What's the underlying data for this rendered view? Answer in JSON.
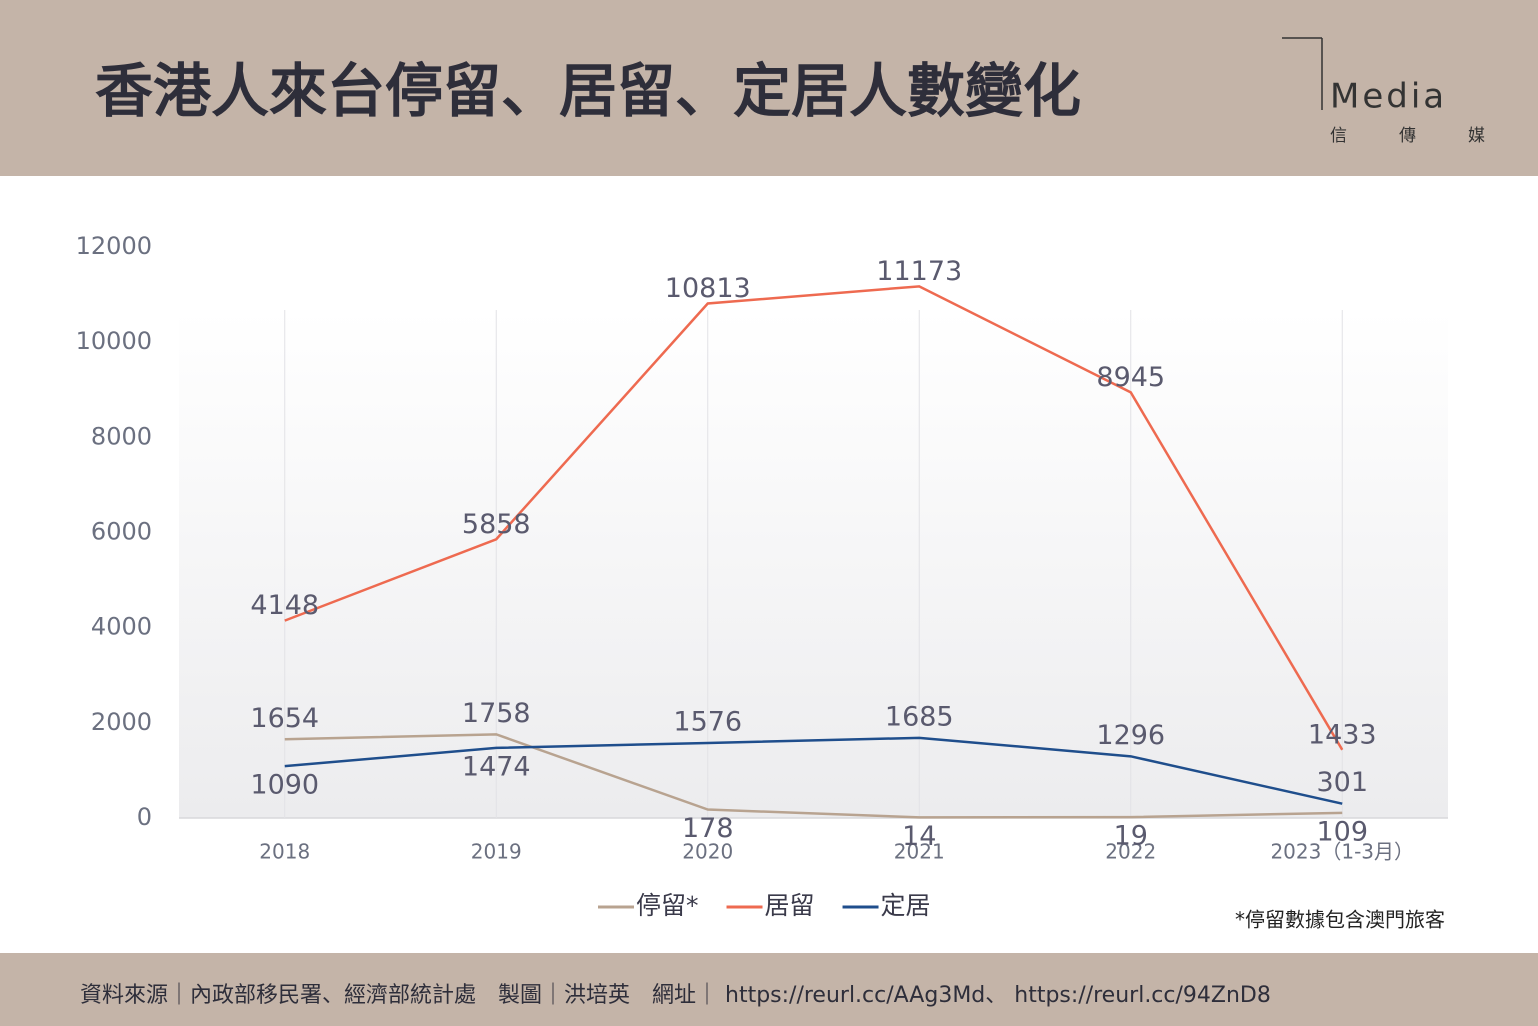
{
  "header": {
    "title": "香港人來台停留、居留、定居人數變化",
    "logo": "Media",
    "logo_sub": "信傳媒"
  },
  "chart_data": {
    "type": "line",
    "categories": [
      "2018",
      "2019",
      "2020",
      "2021",
      "2022",
      "2023（1-3月）"
    ],
    "series": [
      {
        "name": "停留*",
        "color": "#b8a390",
        "values": [
          1654,
          1758,
          178,
          14,
          19,
          109
        ]
      },
      {
        "name": "居留",
        "color": "#ee6a50",
        "values": [
          4148,
          5858,
          10813,
          11173,
          8945,
          1433
        ]
      },
      {
        "name": "定居",
        "color": "#1f4e8c",
        "values": [
          1090,
          1474,
          1576,
          1685,
          1296,
          301
        ]
      }
    ],
    "ylim": [
      0,
      12000
    ],
    "yticks": [
      0,
      2000,
      4000,
      6000,
      8000,
      10000,
      12000
    ],
    "grid": true,
    "legend": "bottom",
    "note": "*停留數據包含澳門旅客"
  },
  "footer": {
    "text": "資料來源｜內政部移民署、經濟部統計處　製圖｜洪培英　網址｜ https://reurl.cc/AAg3Md、 https://reurl.cc/94ZnD8"
  }
}
